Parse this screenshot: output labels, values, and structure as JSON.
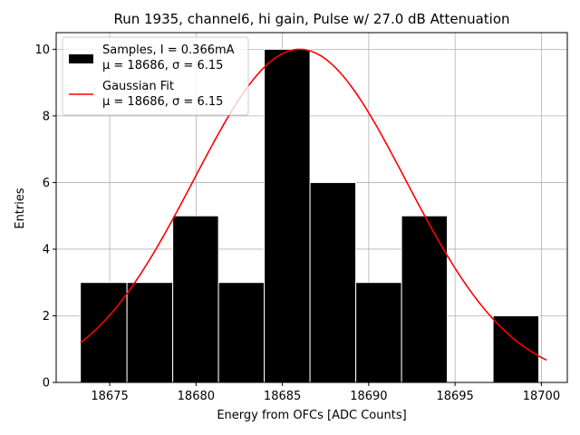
{
  "chart_data": {
    "type": "bar",
    "title": "Run 1935, channel6, hi gain, Pulse w/ 27.0 dB Attenuation",
    "xlabel": "Energy from OFCs [ADC Counts]",
    "ylabel": "Entries",
    "xlim": [
      18671.9,
      18701.5
    ],
    "ylim": [
      0,
      10.5
    ],
    "grid": true,
    "xticks": [
      18675,
      18680,
      18685,
      18690,
      18695,
      18700
    ],
    "yticks": [
      0,
      2,
      4,
      6,
      8,
      10
    ],
    "xtick_labels": [
      "18675",
      "18680",
      "18685",
      "18690",
      "18695",
      "18700"
    ],
    "ytick_labels": [
      "0",
      "2",
      "4",
      "6",
      "8",
      "10"
    ],
    "histogram": {
      "bin_edges": [
        18673.3,
        18676.0,
        18678.65,
        18681.3,
        18683.95,
        18686.6,
        18689.25,
        18691.9,
        18694.55,
        18697.2,
        18699.85
      ],
      "counts": [
        3,
        3,
        5,
        3,
        10,
        6,
        3,
        5,
        0,
        2
      ],
      "bar_width_fraction": 0.97
    },
    "fit": {
      "name": "Gaussian Fit",
      "amplitude": 10.0,
      "mu": 18686.0,
      "sigma": 6.15,
      "x_range": [
        18673.3,
        18700.3
      ],
      "color": "#ff0000"
    },
    "series_colors": {
      "samples": "#000000",
      "fit": "#ff0000",
      "grid": "#b0b0b0"
    },
    "legend": {
      "placement": "upper-left",
      "entries": [
        {
          "line1": "Samples, I = 0.366mA",
          "line2": "μ = 18686, σ = 6.15"
        },
        {
          "line1": "Gaussian Fit",
          "line2": "μ = 18686, σ = 6.15"
        }
      ]
    }
  }
}
